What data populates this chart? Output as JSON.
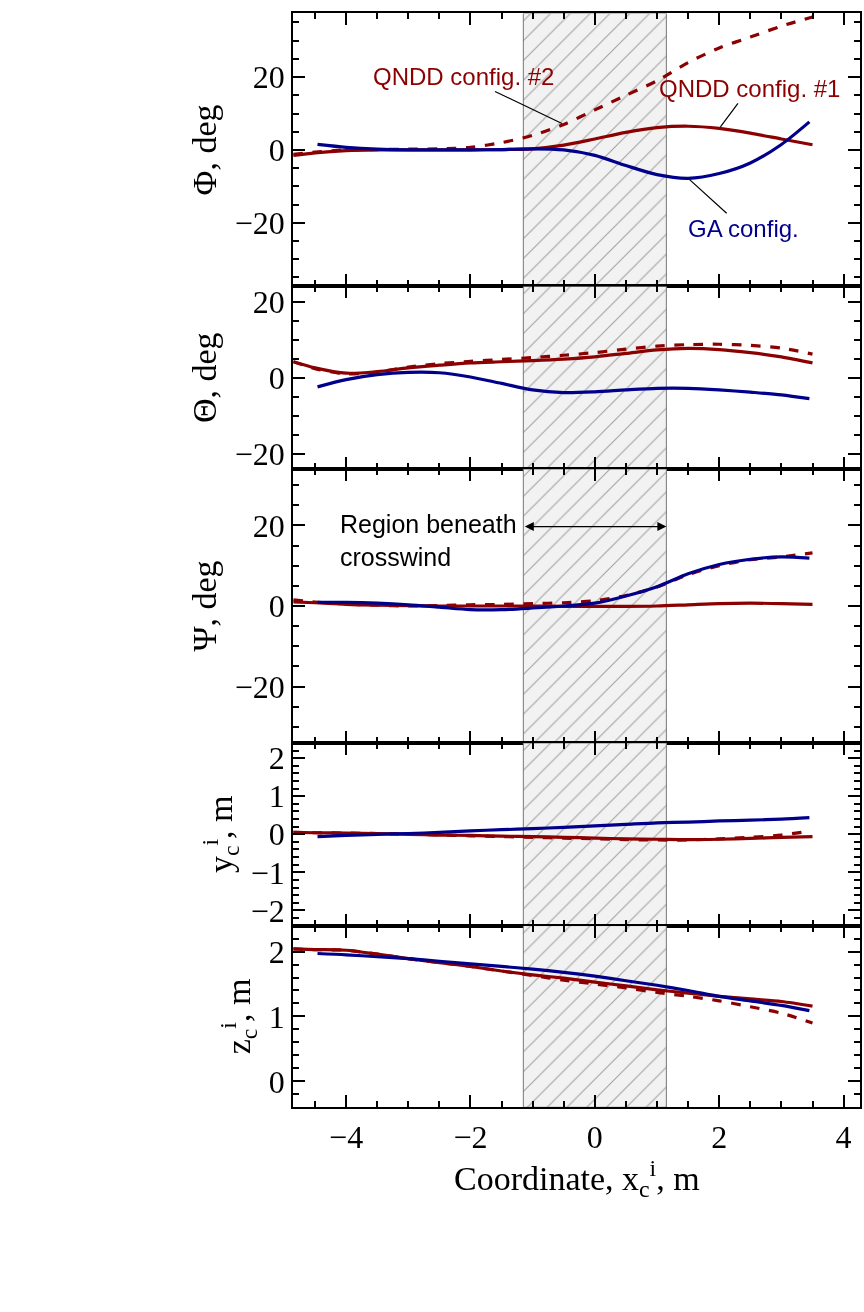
{
  "chart_data": [
    {
      "type": "line",
      "ylabel": "Φ, deg",
      "xlim": [
        -4.85,
        4.27
      ],
      "ylim": [
        -37.5,
        37.5
      ],
      "tick_labels": "y",
      "xticks": [
        {
          "value": -4.5,
          "label": null
        },
        -4,
        {
          "value": -3.5,
          "label": null
        },
        {
          "value": -3,
          "label": null
        },
        {
          "value": -2.5,
          "label": null
        },
        -2,
        {
          "value": -1.5,
          "label": null
        },
        {
          "value": -1,
          "label": null
        },
        {
          "value": -0.5,
          "label": null
        },
        0,
        {
          "value": 0.5,
          "label": null
        },
        {
          "value": 1,
          "label": null
        },
        {
          "value": 1.5,
          "label": null
        },
        2,
        {
          "value": 2.5,
          "label": null
        },
        {
          "value": 3,
          "label": null
        },
        {
          "value": 3.5,
          "label": null
        },
        4
      ],
      "yticks": [
        {
          "value": -35,
          "label": null
        },
        {
          "value": -30,
          "label": null
        },
        {
          "value": -25,
          "label": null
        },
        -20,
        {
          "value": -15,
          "label": null
        },
        {
          "value": -10,
          "label": null
        },
        {
          "value": -5,
          "label": null
        },
        0,
        {
          "value": 5,
          "label": null
        },
        {
          "value": 10,
          "label": null
        },
        {
          "value": 15,
          "label": null
        },
        20,
        {
          "value": 25,
          "label": null
        },
        {
          "value": 30,
          "label": null
        },
        {
          "value": 35,
          "label": null
        }
      ],
      "bands": [
        {
          "axis": "x",
          "from": -1.15,
          "to": 1.15
        }
      ],
      "series": [
        {
          "name": "QNDD config. #1",
          "color": "#8b0000",
          "line_style": "solid",
          "x": [
            -4.85,
            -4.5,
            -4,
            -3.5,
            -3,
            -2.5,
            -2,
            -1.5,
            -1,
            -0.5,
            0,
            0.5,
            1,
            1.5,
            2,
            2.5,
            3,
            3.5
          ],
          "values": [
            -1.5,
            -0.8,
            -0.2,
            0,
            0,
            0,
            0,
            0.1,
            0.3,
            1.3,
            3,
            4.8,
            6.1,
            6.5,
            5.9,
            4.6,
            3,
            1.4
          ]
        },
        {
          "name": "QNDD config. #2",
          "color": "#8b0000",
          "line_style": "dashed",
          "x": [
            -4.85,
            -4.5,
            -4,
            -3.5,
            -3,
            -2.5,
            -2,
            -1.5,
            -1,
            -0.5,
            0,
            0.5,
            1,
            1.5,
            2,
            2.5,
            3,
            3.5
          ],
          "values": [
            -1.2,
            -0.6,
            0,
            0.1,
            0.2,
            0.3,
            0.7,
            2,
            4,
            7,
            11,
            15,
            19,
            24,
            28,
            31,
            34,
            36.5
          ]
        },
        {
          "name": "GA config.",
          "color": "#00008b",
          "line_style": "solid",
          "x": [
            -4.46,
            -4,
            -3.5,
            -3,
            -2.5,
            -2,
            -1.5,
            -1,
            -0.5,
            0,
            0.5,
            1,
            1.5,
            2,
            2.5,
            3,
            3.45
          ],
          "values": [
            1.5,
            0.7,
            0.2,
            0,
            0,
            0,
            0.1,
            0.3,
            0,
            -1.5,
            -4.3,
            -6.8,
            -7.8,
            -6.5,
            -3.6,
            1.5,
            7.7
          ]
        }
      ]
    },
    {
      "type": "line",
      "ylabel": "Θ, deg",
      "xlim": [
        -4.85,
        4.27
      ],
      "ylim": [
        -24,
        24
      ],
      "tick_labels": "y",
      "xticks": [
        {
          "value": -4.5,
          "label": null
        },
        -4,
        {
          "value": -3.5,
          "label": null
        },
        {
          "value": -3,
          "label": null
        },
        {
          "value": -2.5,
          "label": null
        },
        -2,
        {
          "value": -1.5,
          "label": null
        },
        {
          "value": -1,
          "label": null
        },
        {
          "value": -0.5,
          "label": null
        },
        0,
        {
          "value": 0.5,
          "label": null
        },
        {
          "value": 1,
          "label": null
        },
        {
          "value": 1.5,
          "label": null
        },
        2,
        {
          "value": 2.5,
          "label": null
        },
        {
          "value": 3,
          "label": null
        },
        {
          "value": 3.5,
          "label": null
        },
        4
      ],
      "yticks": [
        -20,
        {
          "value": -15,
          "label": null
        },
        {
          "value": -10,
          "label": null
        },
        {
          "value": -5,
          "label": null
        },
        0,
        {
          "value": 5,
          "label": null
        },
        {
          "value": 10,
          "label": null
        },
        {
          "value": 15,
          "label": null
        },
        20
      ],
      "bands": [
        {
          "axis": "x",
          "from": -1.15,
          "to": 1.15
        }
      ],
      "series": [
        {
          "color": "#8b0000",
          "line_style": "solid",
          "x": [
            -4.85,
            -4.5,
            -4,
            -3.5,
            -3,
            -2.5,
            -2,
            -1.5,
            -1,
            -0.5,
            0,
            0.5,
            1,
            1.5,
            2,
            2.5,
            3,
            3.5
          ],
          "values": [
            4.2,
            2.6,
            1.2,
            1.6,
            2.6,
            3.3,
            3.9,
            4.2,
            4.5,
            4.9,
            5.5,
            6.4,
            7.3,
            7.7,
            7.4,
            6.6,
            5.5,
            3.9
          ]
        },
        {
          "color": "#8b0000",
          "line_style": "dashed",
          "x": [
            -4.85,
            -4.5,
            -4,
            -3.5,
            -3,
            -2.5,
            -2,
            -1.5,
            -1,
            -0.5,
            0,
            0.5,
            1,
            1.5,
            2,
            2.5,
            3,
            3.5
          ],
          "values": [
            4.2,
            2.4,
            1.0,
            1.5,
            2.8,
            3.7,
            4.3,
            4.8,
            5.3,
            5.9,
            6.6,
            7.5,
            8.3,
            8.7,
            8.8,
            8.5,
            7.8,
            6.2
          ]
        },
        {
          "color": "#00008b",
          "line_style": "solid",
          "x": [
            -4.46,
            -4,
            -3.5,
            -3,
            -2.5,
            -2,
            -1.5,
            -1,
            -0.5,
            0,
            0.5,
            1,
            1.5,
            2,
            2.5,
            3,
            3.45
          ],
          "values": [
            -2.4,
            -0.5,
            0.8,
            1.4,
            1.3,
            0.2,
            -1.5,
            -3.2,
            -3.9,
            -3.7,
            -3.2,
            -2.8,
            -2.8,
            -3.2,
            -3.8,
            -4.5,
            -5.5
          ]
        }
      ]
    },
    {
      "type": "line",
      "ylabel": "Ψ, deg",
      "xlim": [
        -4.85,
        4.27
      ],
      "ylim": [
        -34,
        34
      ],
      "tick_labels": "y",
      "xticks": [
        {
          "value": -4.5,
          "label": null
        },
        -4,
        {
          "value": -3.5,
          "label": null
        },
        {
          "value": -3,
          "label": null
        },
        {
          "value": -2.5,
          "label": null
        },
        -2,
        {
          "value": -1.5,
          "label": null
        },
        {
          "value": -1,
          "label": null
        },
        {
          "value": -0.5,
          "label": null
        },
        0,
        {
          "value": 0.5,
          "label": null
        },
        {
          "value": 1,
          "label": null
        },
        {
          "value": 1.5,
          "label": null
        },
        2,
        {
          "value": 2.5,
          "label": null
        },
        {
          "value": 3,
          "label": null
        },
        {
          "value": 3.5,
          "label": null
        },
        4
      ],
      "yticks": [
        {
          "value": -30,
          "label": null
        },
        {
          "value": -25,
          "label": null
        },
        -20,
        {
          "value": -15,
          "label": null
        },
        {
          "value": -10,
          "label": null
        },
        {
          "value": -5,
          "label": null
        },
        0,
        {
          "value": 5,
          "label": null
        },
        {
          "value": 10,
          "label": null
        },
        {
          "value": 15,
          "label": null
        },
        20,
        {
          "value": 25,
          "label": null
        },
        {
          "value": 30,
          "label": null
        }
      ],
      "bands": [
        {
          "axis": "x",
          "from": -1.15,
          "to": 1.15,
          "label": "Region beneath\ncrosswind"
        }
      ],
      "series": [
        {
          "color": "#8b0000",
          "line_style": "solid",
          "x": [
            -4.85,
            -4.5,
            -4,
            -3.5,
            -3,
            -2.5,
            -2,
            -1.5,
            -1,
            -0.5,
            0,
            0.5,
            1,
            1.5,
            2,
            2.5,
            3,
            3.5
          ],
          "values": [
            1.0,
            0.8,
            0.4,
            0.2,
            0.1,
            0,
            0,
            0,
            0,
            -0.1,
            -0.1,
            -0.1,
            0,
            0.3,
            0.6,
            0.7,
            0.6,
            0.4
          ]
        },
        {
          "color": "#8b0000",
          "line_style": "dashed",
          "x": [
            -4.85,
            -4.5,
            -4,
            -3.5,
            -3,
            -2.5,
            -2,
            -1.5,
            -1,
            -0.5,
            0,
            0.5,
            1,
            1.5,
            2,
            2.5,
            3,
            3.5
          ],
          "values": [
            1.5,
            1.0,
            0.5,
            0.2,
            0,
            0.1,
            0.3,
            0.4,
            0.6,
            0.8,
            1.3,
            2.6,
            4.7,
            7.8,
            10,
            11.5,
            12.2,
            13.2
          ]
        },
        {
          "color": "#00008b",
          "line_style": "solid",
          "x": [
            -4.46,
            -4,
            -3.5,
            -3,
            -2.5,
            -2,
            -1.5,
            -1,
            -0.5,
            0,
            0.5,
            1,
            1.5,
            2,
            2.5,
            3,
            3.45
          ],
          "values": [
            0.9,
            0.9,
            0.7,
            0.3,
            -0.3,
            -0.9,
            -0.9,
            -0.5,
            0,
            0.7,
            2.5,
            4.8,
            8,
            10.3,
            11.6,
            12.2,
            11.9
          ]
        }
      ]
    },
    {
      "type": "line",
      "ylabel": "y$_{c}$$^{i}$, m",
      "xlim": [
        -4.85,
        4.27
      ],
      "ylim": [
        -2.4,
        2.4
      ],
      "tick_labels": "y",
      "xticks": [
        {
          "value": -4.5,
          "label": null
        },
        -4,
        {
          "value": -3.5,
          "label": null
        },
        {
          "value": -3,
          "label": null
        },
        {
          "value": -2.5,
          "label": null
        },
        -2,
        {
          "value": -1.5,
          "label": null
        },
        {
          "value": -1,
          "label": null
        },
        {
          "value": -0.5,
          "label": null
        },
        0,
        {
          "value": 0.5,
          "label": null
        },
        {
          "value": 1,
          "label": null
        },
        {
          "value": 1.5,
          "label": null
        },
        2,
        {
          "value": 2.5,
          "label": null
        },
        {
          "value": 3,
          "label": null
        },
        {
          "value": 3.5,
          "label": null
        },
        4
      ],
      "yticks": [
        {
          "value": -2.2,
          "label": null
        },
        -2,
        {
          "value": -1.8,
          "label": null
        },
        {
          "value": -1.6,
          "label": null
        },
        {
          "value": -1.4,
          "label": null
        },
        {
          "value": -1.2,
          "label": null
        },
        -1,
        {
          "value": -0.8,
          "label": null
        },
        {
          "value": -0.6,
          "label": null
        },
        {
          "value": -0.4,
          "label": null
        },
        {
          "value": -0.2,
          "label": null
        },
        0,
        {
          "value": 0.2,
          "label": null
        },
        {
          "value": 0.4,
          "label": null
        },
        {
          "value": 0.6,
          "label": null
        },
        {
          "value": 0.8,
          "label": null
        },
        1,
        {
          "value": 1.2,
          "label": null
        },
        {
          "value": 1.4,
          "label": null
        },
        {
          "value": 1.6,
          "label": null
        },
        {
          "value": 1.8,
          "label": null
        },
        2,
        {
          "value": 2.2,
          "label": null
        }
      ],
      "bands": [
        {
          "axis": "x",
          "from": -1.15,
          "to": 1.15
        }
      ],
      "series": [
        {
          "color": "#8b0000",
          "line_style": "solid",
          "x": [
            -4.85,
            -4.5,
            -4,
            -3.5,
            -3,
            -2.5,
            -2,
            -1.5,
            -1,
            -0.5,
            0,
            0.5,
            1,
            1.5,
            2,
            2.5,
            3,
            3.5
          ],
          "values": [
            0.05,
            0.04,
            0.03,
            0.02,
            0,
            -0.02,
            -0.03,
            -0.05,
            -0.06,
            -0.08,
            -0.1,
            -0.12,
            -0.13,
            -0.14,
            -0.13,
            -0.11,
            -0.08,
            -0.06
          ]
        },
        {
          "color": "#8b0000",
          "line_style": "dashed",
          "x": [
            -4.85,
            -4.5,
            -4,
            -3.5,
            -3,
            -2.5,
            -2,
            -1.5,
            -1,
            -0.5,
            0,
            0.5,
            1,
            1.5,
            2,
            2.5,
            3,
            3.4
          ],
          "values": [
            0.05,
            0.04,
            0.03,
            0.02,
            0,
            -0.02,
            -0.04,
            -0.06,
            -0.08,
            -0.1,
            -0.12,
            -0.14,
            -0.15,
            -0.15,
            -0.12,
            -0.08,
            -0.02,
            0.07
          ]
        },
        {
          "color": "#00008b",
          "line_style": "solid",
          "x": [
            -4.46,
            -4,
            -3.5,
            -3,
            -2.5,
            -2,
            -1.5,
            -1,
            -0.5,
            0,
            0.5,
            1,
            1.5,
            2,
            2.5,
            3,
            3.45
          ],
          "values": [
            -0.06,
            -0.03,
            0,
            0.02,
            0.05,
            0.09,
            0.12,
            0.15,
            0.18,
            0.22,
            0.26,
            0.3,
            0.32,
            0.35,
            0.37,
            0.4,
            0.44
          ]
        }
      ]
    },
    {
      "type": "line",
      "ylabel": "z$_{c}$$^{i}$, m",
      "xlabel": "Coordinate, x$_{c}$$^{i}$, m",
      "xlim": [
        -4.85,
        4.27
      ],
      "ylim": [
        -0.4,
        2.4
      ],
      "xticks": [
        {
          "value": -4.5,
          "label": null
        },
        -4,
        {
          "value": -3.5,
          "label": null
        },
        {
          "value": -3,
          "label": null
        },
        {
          "value": -2.5,
          "label": null
        },
        -2,
        {
          "value": -1.5,
          "label": null
        },
        {
          "value": -1,
          "label": null
        },
        {
          "value": -0.5,
          "label": null
        },
        0,
        {
          "value": 0.5,
          "label": null
        },
        {
          "value": 1,
          "label": null
        },
        {
          "value": 1.5,
          "label": null
        },
        2,
        {
          "value": 2.5,
          "label": null
        },
        {
          "value": 3,
          "label": null
        },
        {
          "value": 3.5,
          "label": null
        },
        4
      ],
      "yticks": [
        {
          "value": -0.2,
          "label": null
        },
        0,
        {
          "value": 0.2,
          "label": null
        },
        {
          "value": 0.4,
          "label": null
        },
        {
          "value": 0.6,
          "label": null
        },
        {
          "value": 0.8,
          "label": null
        },
        1,
        {
          "value": 1.2,
          "label": null
        },
        {
          "value": 1.4,
          "label": null
        },
        {
          "value": 1.6,
          "label": null
        },
        {
          "value": 1.8,
          "label": null
        },
        2,
        {
          "value": 2.2,
          "label": null
        }
      ],
      "bands": [
        {
          "axis": "x",
          "from": -1.15,
          "to": 1.15
        }
      ],
      "series": [
        {
          "color": "#8b0000",
          "line_style": "solid",
          "x": [
            -4.85,
            -4.5,
            -4,
            -3.5,
            -3,
            -2.5,
            -2,
            -1.5,
            -1,
            -0.5,
            0,
            0.5,
            1,
            1.5,
            2,
            2.5,
            3,
            3.5
          ],
          "values": [
            2.04,
            2.03,
            2.02,
            1.96,
            1.89,
            1.83,
            1.77,
            1.7,
            1.64,
            1.59,
            1.53,
            1.47,
            1.41,
            1.36,
            1.31,
            1.27,
            1.23,
            1.16
          ]
        },
        {
          "color": "#8b0000",
          "line_style": "dashed",
          "x": [
            -4.85,
            -4.5,
            -4,
            -3.5,
            -3,
            -2.5,
            -2,
            -1.5,
            -1,
            -0.5,
            0,
            0.5,
            1,
            1.5,
            2,
            2.5,
            3,
            3.5
          ],
          "values": [
            2.04,
            2.03,
            2.02,
            1.96,
            1.89,
            1.83,
            1.77,
            1.7,
            1.63,
            1.56,
            1.5,
            1.44,
            1.37,
            1.31,
            1.24,
            1.15,
            1.05,
            0.9
          ]
        },
        {
          "color": "#00008b",
          "line_style": "solid",
          "x": [
            -4.46,
            -4,
            -3.5,
            -3,
            -2.5,
            -2,
            -1.5,
            -1,
            -0.5,
            0,
            0.5,
            1,
            1.5,
            2,
            2.5,
            3,
            3.45
          ],
          "values": [
            1.97,
            1.95,
            1.92,
            1.89,
            1.85,
            1.81,
            1.77,
            1.73,
            1.68,
            1.62,
            1.55,
            1.48,
            1.4,
            1.31,
            1.24,
            1.17,
            1.09
          ]
        }
      ]
    }
  ]
}
